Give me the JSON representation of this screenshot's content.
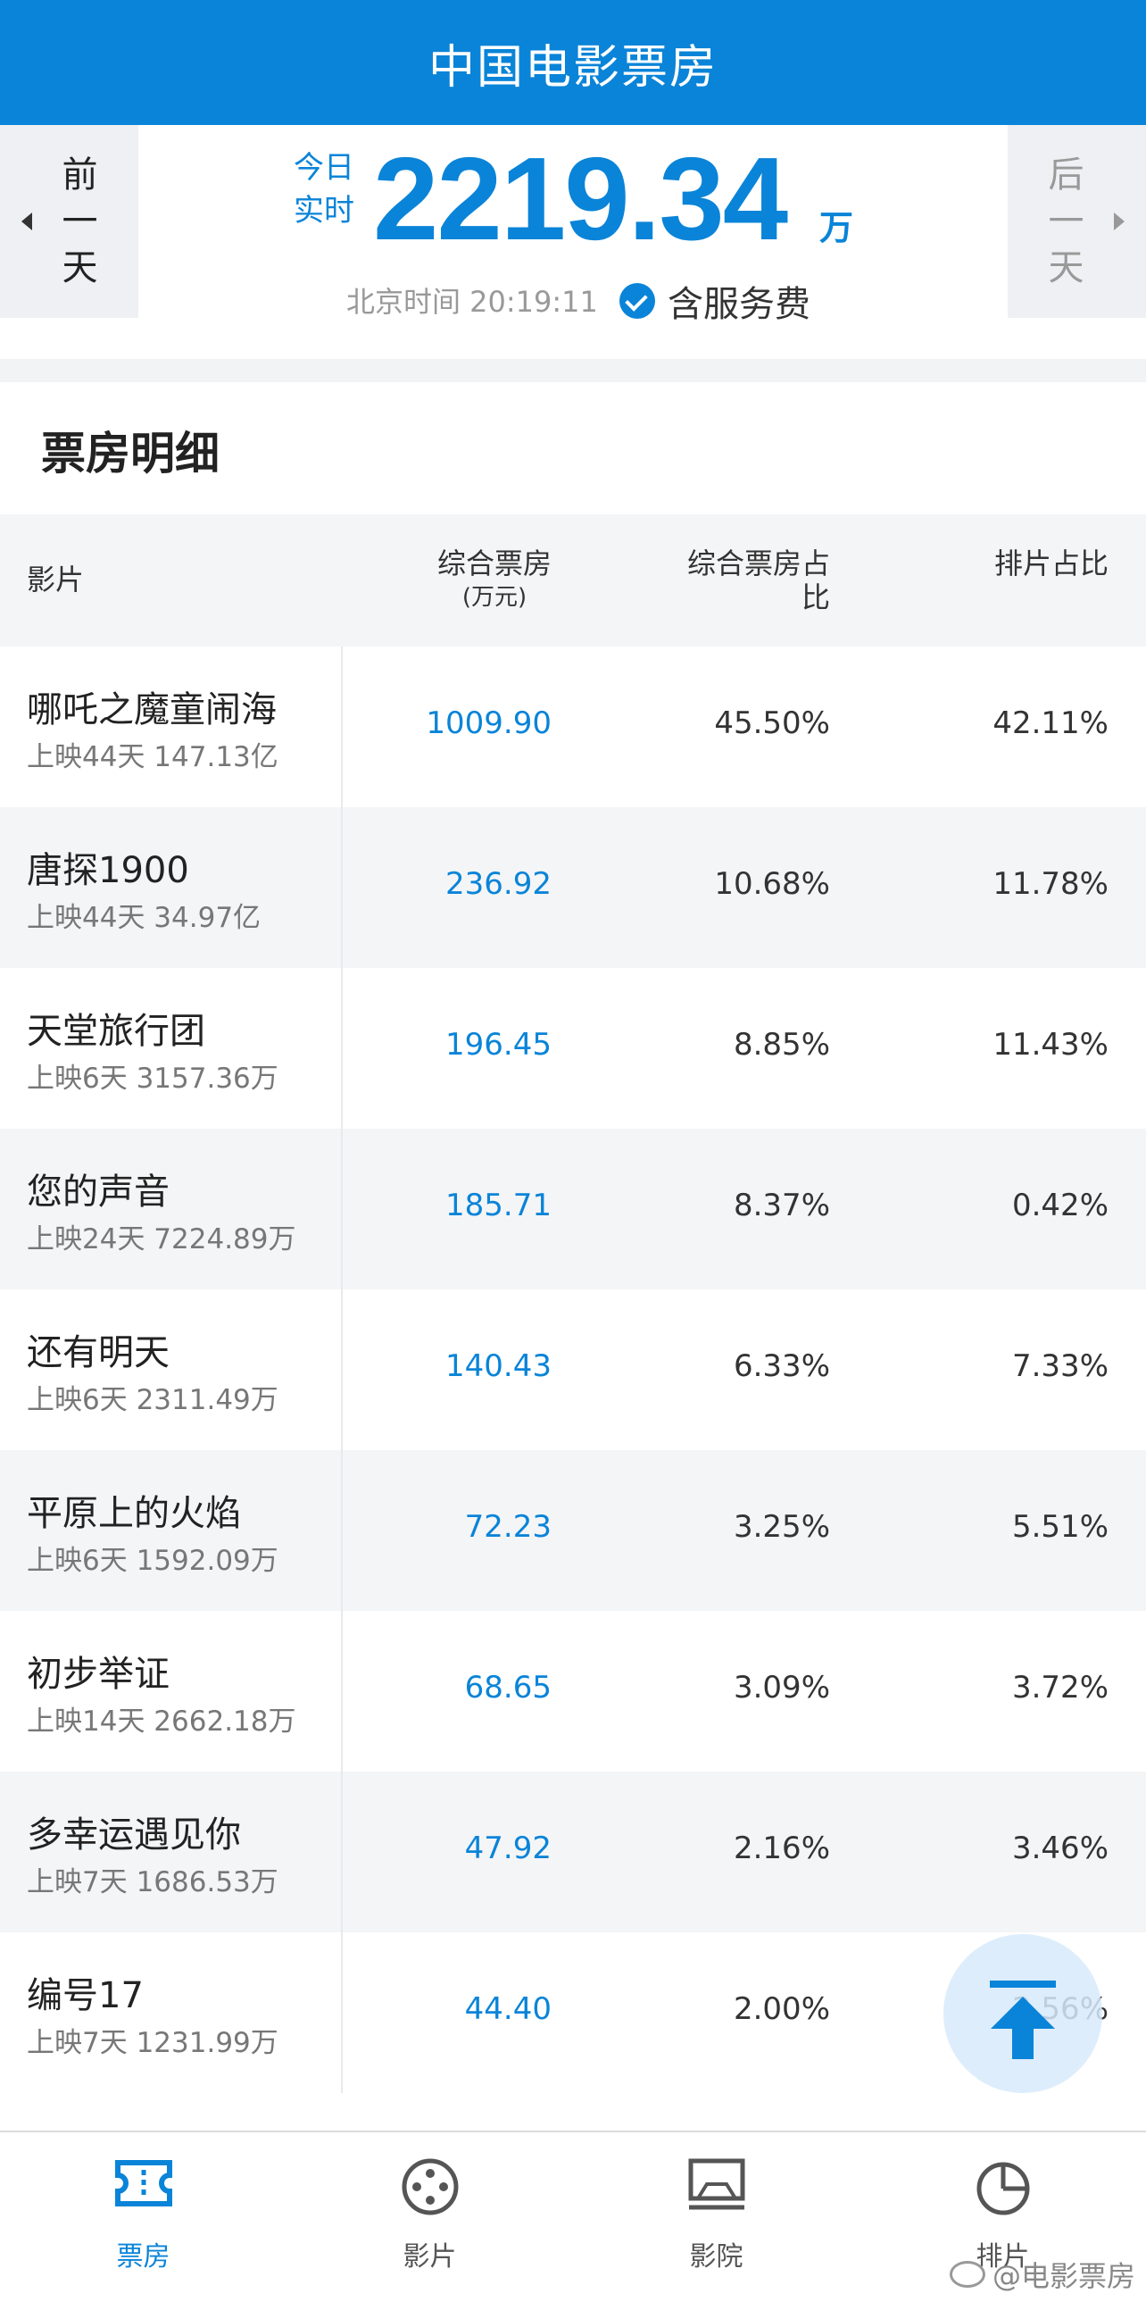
{
  "header": {
    "title": "中国电影票房"
  },
  "summary": {
    "prev_day": "前一天",
    "next_day": "后一天",
    "today_label": "今日实时",
    "total": "2219.34",
    "unit": "万",
    "clock": "北京时间 20:19:11",
    "fee_label": "含服务费"
  },
  "detail": {
    "title": "票房明细",
    "columns": {
      "film": "影片",
      "box": "综合票房",
      "box_unit": "(万元)",
      "share": "综合票房占比",
      "seat": "排片占比"
    },
    "rows": [
      {
        "name": "哪吒之魔童闹海",
        "meta": "上映44天 147.13亿",
        "box": "1009.90",
        "share": "45.50%",
        "seat": "42.11%"
      },
      {
        "name": "唐探1900",
        "meta": "上映44天 34.97亿",
        "box": "236.92",
        "share": "10.68%",
        "seat": "11.78%"
      },
      {
        "name": "天堂旅行团",
        "meta": "上映6天 3157.36万",
        "box": "196.45",
        "share": "8.85%",
        "seat": "11.43%"
      },
      {
        "name": "您的声音",
        "meta": "上映24天 7224.89万",
        "box": "185.71",
        "share": "8.37%",
        "seat": "0.42%"
      },
      {
        "name": "还有明天",
        "meta": "上映6天 2311.49万",
        "box": "140.43",
        "share": "6.33%",
        "seat": "7.33%"
      },
      {
        "name": "平原上的火焰",
        "meta": "上映6天 1592.09万",
        "box": "72.23",
        "share": "3.25%",
        "seat": "5.51%"
      },
      {
        "name": "初步举证",
        "meta": "上映14天 2662.18万",
        "box": "68.65",
        "share": "3.09%",
        "seat": "3.72%"
      },
      {
        "name": "多幸运遇见你",
        "meta": "上映7天 1686.53万",
        "box": "47.92",
        "share": "2.16%",
        "seat": "3.46%"
      },
      {
        "name": "编号17",
        "meta": "上映7天 1231.99万",
        "box": "44.40",
        "share": "2.00%",
        "seat": "2.56%"
      }
    ]
  },
  "tabs": [
    {
      "label": "票房",
      "icon": "ticket-icon",
      "active": true
    },
    {
      "label": "影片",
      "icon": "film-reel-icon",
      "active": false
    },
    {
      "label": "影院",
      "icon": "cinema-screen-icon",
      "active": false
    },
    {
      "label": "排片",
      "icon": "pie-chart-icon",
      "active": false
    }
  ],
  "watermark": "@电影票房",
  "colors": {
    "accent": "#0a84d8",
    "header_bg": "#0a84d8"
  }
}
